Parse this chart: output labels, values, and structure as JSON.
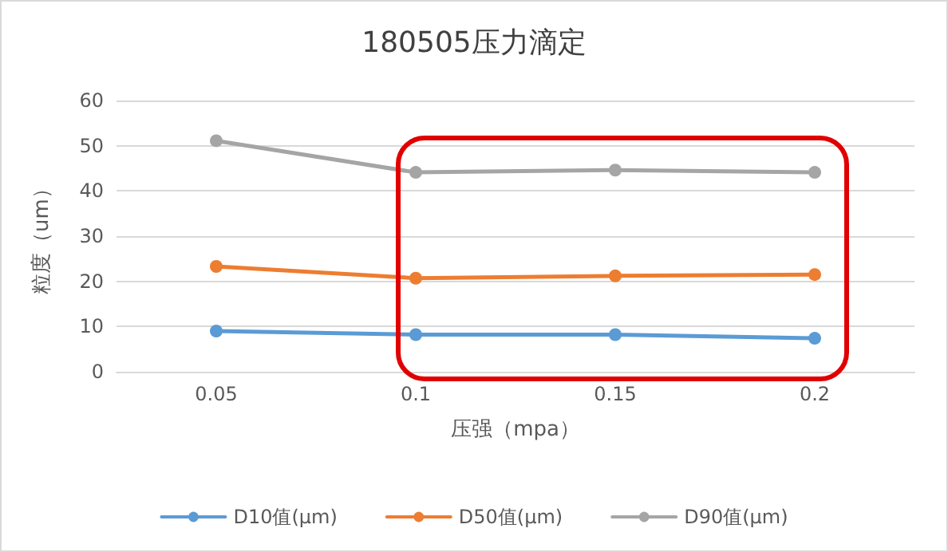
{
  "chart_data": {
    "type": "line",
    "title": "180505压力滴定",
    "xlabel": "压强（mpa）",
    "ylabel": "粒度（um）",
    "categories": [
      "0.05",
      "0.1",
      "0.15",
      "0.2"
    ],
    "series": [
      {
        "name": "D10值(μm)",
        "color": "#5b9bd5",
        "values": [
          9,
          8.2,
          8.2,
          7.4
        ]
      },
      {
        "name": "D50值(μm)",
        "color": "#ed7d31",
        "values": [
          23.3,
          20.7,
          21.2,
          21.5
        ]
      },
      {
        "name": "D90值(μm)",
        "color": "#a5a5a5",
        "values": [
          51.1,
          44.1,
          44.6,
          44.1
        ]
      }
    ],
    "ylim": [
      0,
      60
    ],
    "yticks": [
      0,
      10,
      20,
      30,
      40,
      50,
      60
    ],
    "grid": "y",
    "legend": "bottom",
    "marker": "circle",
    "line_style": "solid"
  }
}
